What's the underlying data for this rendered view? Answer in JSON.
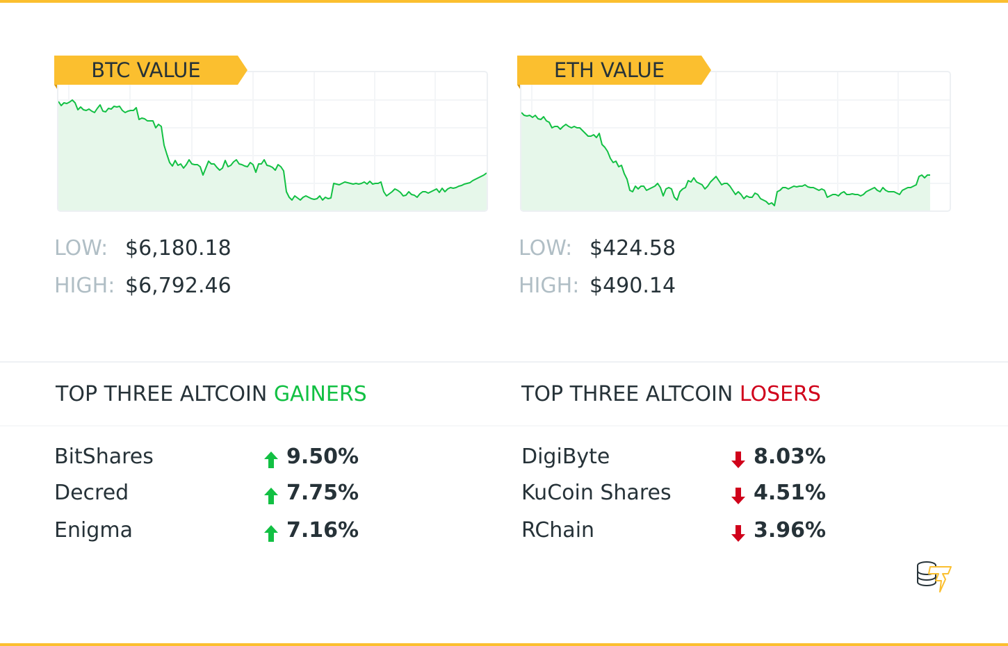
{
  "colors": {
    "accent": "#fbbf2f",
    "line": "#12c043",
    "fill": "#e6f7ea",
    "gain": "#12c043",
    "loss": "#d0021b",
    "text": "#263238",
    "muted": "#b0bec5"
  },
  "btc": {
    "title": "BTC VALUE",
    "low_label": "LOW:",
    "low_value": "$6,180.18",
    "high_label": "HIGH:",
    "high_value": "$6,792.46"
  },
  "eth": {
    "title": "ETH VALUE",
    "low_label": "LOW:",
    "low_value": "$424.58",
    "high_label": "HIGH:",
    "high_value": "$490.14"
  },
  "gainers": {
    "title_prefix": "TOP THREE ALTCOIN",
    "title_highlight": "GAINERS",
    "items": [
      {
        "name": "BitShares",
        "change": "9.50%",
        "direction": "up"
      },
      {
        "name": "Decred",
        "change": "7.75%",
        "direction": "up"
      },
      {
        "name": "Enigma",
        "change": "7.16%",
        "direction": "up"
      }
    ]
  },
  "losers": {
    "title_prefix": "TOP THREE ALTCOIN",
    "title_highlight": "LOSERS",
    "items": [
      {
        "name": "DigiByte",
        "change": "8.03%",
        "direction": "down"
      },
      {
        "name": "KuCoin Shares",
        "change": "4.51%",
        "direction": "down"
      },
      {
        "name": "RChain",
        "change": "3.96%",
        "direction": "down"
      }
    ]
  },
  "logo": {
    "icon": "coins-lightning-logo"
  },
  "chart_data": [
    {
      "type": "area",
      "title": "BTC VALUE",
      "xlabel": "",
      "ylabel": "",
      "grid": true,
      "legend": "none",
      "ylim": [
        6180.18,
        6792.46
      ],
      "summary": {
        "low": 6180.18,
        "high": 6792.46
      },
      "points": [
        [
          0,
          42
        ],
        [
          4,
          48
        ],
        [
          8,
          44
        ],
        [
          12,
          45
        ],
        [
          16,
          43
        ],
        [
          20,
          40
        ],
        [
          24,
          44
        ],
        [
          28,
          54
        ],
        [
          32,
          50
        ],
        [
          36,
          54
        ],
        [
          40,
          55
        ],
        [
          44,
          53
        ],
        [
          48,
          56
        ],
        [
          52,
          58
        ],
        [
          56,
          52
        ],
        [
          60,
          47
        ],
        [
          64,
          56
        ],
        [
          68,
          57
        ],
        [
          72,
          52
        ],
        [
          76,
          53
        ],
        [
          80,
          49
        ],
        [
          84,
          50
        ],
        [
          88,
          49
        ],
        [
          92,
          55
        ],
        [
          96,
          58
        ],
        [
          100,
          56
        ],
        [
          104,
          55
        ],
        [
          108,
          55
        ],
        [
          112,
          51
        ],
        [
          116,
          68
        ],
        [
          120,
          66
        ],
        [
          124,
          67
        ],
        [
          128,
          70
        ],
        [
          132,
          70
        ],
        [
          136,
          70
        ],
        [
          140,
          80
        ],
        [
          144,
          75
        ],
        [
          148,
          78
        ],
        [
          152,
          105
        ],
        [
          156,
          118
        ],
        [
          160,
          130
        ],
        [
          164,
          135
        ],
        [
          168,
          127
        ],
        [
          172,
          134
        ],
        [
          176,
          132
        ],
        [
          180,
          138
        ],
        [
          184,
          133
        ],
        [
          188,
          126
        ],
        [
          192,
          132
        ],
        [
          196,
          133
        ],
        [
          200,
          133
        ],
        [
          204,
          136
        ],
        [
          208,
          148
        ],
        [
          212,
          138
        ],
        [
          216,
          128
        ],
        [
          220,
          132
        ],
        [
          224,
          132
        ],
        [
          228,
          137
        ],
        [
          232,
          141
        ],
        [
          236,
          138
        ],
        [
          240,
          127
        ],
        [
          244,
          136
        ],
        [
          248,
          134
        ],
        [
          252,
          129
        ],
        [
          256,
          126
        ],
        [
          260,
          132
        ],
        [
          264,
          133
        ],
        [
          268,
          135
        ],
        [
          272,
          136
        ],
        [
          276,
          130
        ],
        [
          280,
          133
        ],
        [
          284,
          144
        ],
        [
          288,
          132
        ],
        [
          292,
          132
        ],
        [
          296,
          126
        ],
        [
          300,
          134
        ],
        [
          304,
          135
        ],
        [
          308,
          137
        ],
        [
          312,
          141
        ],
        [
          316,
          133
        ],
        [
          320,
          136
        ],
        [
          324,
          142
        ],
        [
          328,
          172
        ],
        [
          332,
          180
        ],
        [
          336,
          184
        ],
        [
          340,
          178
        ],
        [
          344,
          181
        ],
        [
          348,
          184
        ],
        [
          352,
          180
        ],
        [
          356,
          178
        ],
        [
          360,
          180
        ],
        [
          364,
          182
        ],
        [
          368,
          183
        ],
        [
          372,
          182
        ],
        [
          376,
          178
        ],
        [
          380,
          184
        ],
        [
          384,
          180
        ],
        [
          388,
          182
        ],
        [
          392,
          181
        ],
        [
          396,
          160
        ],
        [
          400,
          161
        ],
        [
          404,
          162
        ],
        [
          408,
          160
        ],
        [
          412,
          158
        ],
        [
          416,
          159
        ],
        [
          420,
          160
        ],
        [
          424,
          161
        ],
        [
          428,
          160
        ],
        [
          432,
          161
        ],
        [
          436,
          160
        ],
        [
          440,
          158
        ],
        [
          444,
          161
        ],
        [
          448,
          157
        ],
        [
          452,
          161
        ],
        [
          456,
          160
        ],
        [
          460,
          160
        ],
        [
          464,
          158
        ],
        [
          468,
          172
        ],
        [
          472,
          178
        ],
        [
          476,
          175
        ],
        [
          480,
          172
        ],
        [
          484,
          168
        ],
        [
          488,
          170
        ],
        [
          492,
          173
        ],
        [
          496,
          178
        ],
        [
          500,
          177
        ],
        [
          504,
          172
        ],
        [
          508,
          176
        ],
        [
          512,
          177
        ],
        [
          516,
          180
        ],
        [
          520,
          175
        ],
        [
          524,
          172
        ],
        [
          528,
          172
        ],
        [
          532,
          174
        ],
        [
          536,
          172
        ],
        [
          540,
          170
        ],
        [
          544,
          168
        ],
        [
          548,
          173
        ],
        [
          552,
          167
        ],
        [
          556,
          172
        ],
        [
          560,
          168
        ],
        [
          564,
          166
        ],
        [
          568,
          167
        ],
        [
          572,
          166
        ],
        [
          576,
          164
        ],
        [
          580,
          163
        ],
        [
          584,
          161
        ],
        [
          588,
          160
        ],
        [
          592,
          159
        ],
        [
          596,
          156
        ],
        [
          600,
          154
        ],
        [
          604,
          152
        ],
        [
          608,
          150
        ],
        [
          612,
          148
        ],
        [
          616,
          145
        ]
      ]
    },
    {
      "type": "area",
      "title": "ETH VALUE",
      "xlabel": "",
      "ylabel": "",
      "grid": true,
      "legend": "none",
      "ylim": [
        424.58,
        490.14
      ],
      "summary": {
        "low": 424.58,
        "high": 490.14
      },
      "points": [
        [
          0,
          58
        ],
        [
          4,
          62
        ],
        [
          8,
          63
        ],
        [
          12,
          62
        ],
        [
          16,
          65
        ],
        [
          20,
          62
        ],
        [
          24,
          67
        ],
        [
          28,
          68
        ],
        [
          32,
          64
        ],
        [
          36,
          70
        ],
        [
          40,
          72
        ],
        [
          44,
          80
        ],
        [
          48,
          78
        ],
        [
          52,
          78
        ],
        [
          56,
          82
        ],
        [
          60,
          78
        ],
        [
          64,
          75
        ],
        [
          68,
          78
        ],
        [
          72,
          80
        ],
        [
          76,
          78
        ],
        [
          80,
          80
        ],
        [
          84,
          80
        ],
        [
          88,
          84
        ],
        [
          92,
          88
        ],
        [
          96,
          92
        ],
        [
          100,
          92
        ],
        [
          104,
          90
        ],
        [
          108,
          94
        ],
        [
          112,
          88
        ],
        [
          116,
          104
        ],
        [
          120,
          108
        ],
        [
          124,
          114
        ],
        [
          128,
          124
        ],
        [
          132,
          130
        ],
        [
          136,
          128
        ],
        [
          140,
          136
        ],
        [
          144,
          134
        ],
        [
          148,
          146
        ],
        [
          152,
          154
        ],
        [
          156,
          170
        ],
        [
          160,
          172
        ],
        [
          164,
          164
        ],
        [
          168,
          168
        ],
        [
          172,
          164
        ],
        [
          176,
          164
        ],
        [
          180,
          170
        ],
        [
          184,
          168
        ],
        [
          188,
          166
        ],
        [
          192,
          164
        ],
        [
          196,
          160
        ],
        [
          200,
          166
        ],
        [
          204,
          178
        ],
        [
          208,
          168
        ],
        [
          212,
          166
        ],
        [
          216,
          168
        ],
        [
          220,
          180
        ],
        [
          224,
          184
        ],
        [
          228,
          172
        ],
        [
          232,
          168
        ],
        [
          236,
          166
        ],
        [
          240,
          156
        ],
        [
          244,
          158
        ],
        [
          248,
          152
        ],
        [
          252,
          158
        ],
        [
          256,
          160
        ],
        [
          260,
          162
        ],
        [
          264,
          168
        ],
        [
          268,
          164
        ],
        [
          272,
          158
        ],
        [
          276,
          154
        ],
        [
          280,
          150
        ],
        [
          284,
          156
        ],
        [
          288,
          162
        ],
        [
          292,
          160
        ],
        [
          296,
          160
        ],
        [
          300,
          164
        ],
        [
          304,
          170
        ],
        [
          308,
          176
        ],
        [
          312,
          172
        ],
        [
          316,
          176
        ],
        [
          320,
          182
        ],
        [
          324,
          178
        ],
        [
          328,
          180
        ],
        [
          332,
          180
        ],
        [
          336,
          174
        ],
        [
          340,
          176
        ],
        [
          344,
          182
        ],
        [
          348,
          184
        ],
        [
          352,
          186
        ],
        [
          356,
          190
        ],
        [
          360,
          188
        ],
        [
          364,
          192
        ],
        [
          368,
          172
        ],
        [
          372,
          170
        ],
        [
          376,
          166
        ],
        [
          380,
          166
        ],
        [
          384,
          168
        ],
        [
          388,
          166
        ],
        [
          392,
          164
        ],
        [
          396,
          165
        ],
        [
          400,
          164
        ],
        [
          404,
          164
        ],
        [
          408,
          162
        ],
        [
          412,
          165
        ],
        [
          416,
          166
        ],
        [
          420,
          166
        ],
        [
          424,
          168
        ],
        [
          428,
          170
        ],
        [
          432,
          168
        ],
        [
          436,
          170
        ],
        [
          440,
          180
        ],
        [
          444,
          178
        ],
        [
          448,
          176
        ],
        [
          452,
          176
        ],
        [
          456,
          178
        ],
        [
          460,
          174
        ],
        [
          464,
          172
        ],
        [
          468,
          176
        ],
        [
          472,
          176
        ],
        [
          476,
          175
        ],
        [
          480,
          176
        ],
        [
          484,
          176
        ],
        [
          488,
          178
        ],
        [
          492,
          176
        ],
        [
          496,
          172
        ],
        [
          500,
          170
        ],
        [
          504,
          168
        ],
        [
          508,
          166
        ],
        [
          512,
          170
        ],
        [
          516,
          172
        ],
        [
          520,
          166
        ],
        [
          524,
          170
        ],
        [
          528,
          172
        ],
        [
          532,
          172
        ],
        [
          536,
          172
        ],
        [
          540,
          174
        ],
        [
          544,
          176
        ],
        [
          548,
          170
        ],
        [
          552,
          168
        ],
        [
          556,
          166
        ],
        [
          560,
          166
        ],
        [
          564,
          164
        ],
        [
          568,
          162
        ],
        [
          572,
          150
        ],
        [
          576,
          148
        ],
        [
          580,
          152
        ],
        [
          584,
          148
        ],
        [
          588,
          148
        ]
      ]
    }
  ]
}
